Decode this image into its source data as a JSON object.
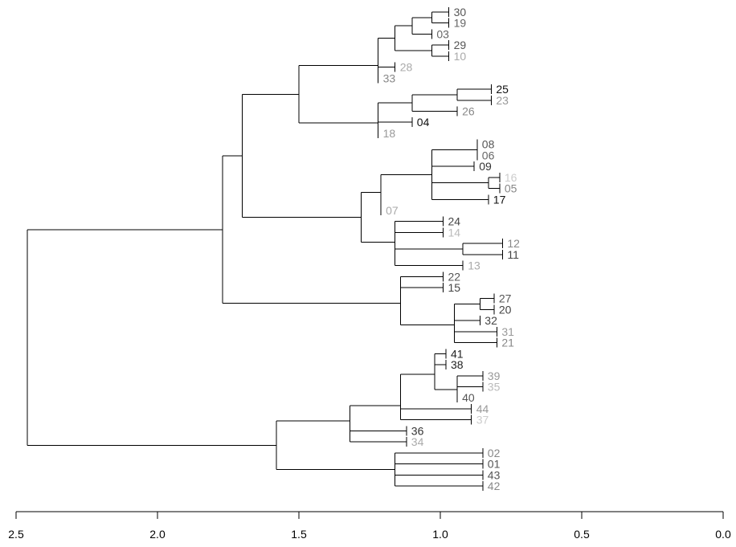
{
  "chart_data": {
    "type": "dendrogram",
    "orientation": "leaves-right",
    "xlim": [
      2.5,
      0.0
    ],
    "ticks": [
      {
        "value": 2.5,
        "label": "2.5"
      },
      {
        "value": 2.0,
        "label": "2.0"
      },
      {
        "value": 1.5,
        "label": "1.5"
      },
      {
        "value": 1.0,
        "label": "1.0"
      },
      {
        "value": 0.5,
        "label": "0.5"
      },
      {
        "value": 0.0,
        "label": "0.0"
      }
    ],
    "leaves": [
      {
        "label": "30",
        "height": 0.97,
        "color": "#555555"
      },
      {
        "label": "19",
        "height": 0.97,
        "color": "#666666"
      },
      {
        "label": "03",
        "height": 1.03,
        "color": "#666666"
      },
      {
        "label": "29",
        "height": 0.97,
        "color": "#555555"
      },
      {
        "label": "10",
        "height": 0.97,
        "color": "#aaaaaa"
      },
      {
        "label": "28",
        "height": 1.16,
        "color": "#aaaaaa"
      },
      {
        "label": "33",
        "height": 1.22,
        "color": "#888888"
      },
      {
        "label": "25",
        "height": 0.82,
        "color": "#111111"
      },
      {
        "label": "23",
        "height": 0.82,
        "color": "#999999"
      },
      {
        "label": "26",
        "height": 0.94,
        "color": "#888888"
      },
      {
        "label": "04",
        "height": 1.1,
        "color": "#111111"
      },
      {
        "label": "18",
        "height": 1.22,
        "color": "#999999"
      },
      {
        "label": "08",
        "height": 0.87,
        "color": "#555555"
      },
      {
        "label": "06",
        "height": 0.87,
        "color": "#666666"
      },
      {
        "label": "09",
        "height": 0.88,
        "color": "#333333"
      },
      {
        "label": "16",
        "height": 0.79,
        "color": "#cccccc"
      },
      {
        "label": "05",
        "height": 0.79,
        "color": "#888888"
      },
      {
        "label": "17",
        "height": 0.83,
        "color": "#111111"
      },
      {
        "label": "07",
        "height": 1.21,
        "color": "#aaaaaa"
      },
      {
        "label": "24",
        "height": 0.99,
        "color": "#444444"
      },
      {
        "label": "14",
        "height": 0.99,
        "color": "#bbbbbb"
      },
      {
        "label": "12",
        "height": 0.78,
        "color": "#888888"
      },
      {
        "label": "11",
        "height": 0.78,
        "color": "#444444"
      },
      {
        "label": "13",
        "height": 0.92,
        "color": "#aaaaaa"
      },
      {
        "label": "22",
        "height": 0.99,
        "color": "#555555"
      },
      {
        "label": "15",
        "height": 0.99,
        "color": "#444444"
      },
      {
        "label": "27",
        "height": 0.81,
        "color": "#555555"
      },
      {
        "label": "20",
        "height": 0.81,
        "color": "#444444"
      },
      {
        "label": "32",
        "height": 0.86,
        "color": "#444444"
      },
      {
        "label": "31",
        "height": 0.8,
        "color": "#999999"
      },
      {
        "label": "21",
        "height": 0.8,
        "color": "#888888"
      },
      {
        "label": "41",
        "height": 0.98,
        "color": "#222222"
      },
      {
        "label": "38",
        "height": 0.98,
        "color": "#222222"
      },
      {
        "label": "39",
        "height": 0.85,
        "color": "#999999"
      },
      {
        "label": "35",
        "height": 0.85,
        "color": "#bbbbbb"
      },
      {
        "label": "40",
        "height": 0.94,
        "color": "#555555"
      },
      {
        "label": "44",
        "height": 0.89,
        "color": "#999999"
      },
      {
        "label": "37",
        "height": 0.89,
        "color": "#cccccc"
      },
      {
        "label": "36",
        "height": 1.12,
        "color": "#333333"
      },
      {
        "label": "34",
        "height": 1.12,
        "color": "#aaaaaa"
      },
      {
        "label": "02",
        "height": 0.85,
        "color": "#888888"
      },
      {
        "label": "01",
        "height": 0.85,
        "color": "#555555"
      },
      {
        "label": "43",
        "height": 0.85,
        "color": "#555555"
      },
      {
        "label": "42",
        "height": 0.85,
        "color": "#888888"
      }
    ],
    "merges": [
      {
        "height": 1.03,
        "children": [
          [
            "leaf",
            0
          ],
          [
            "leaf",
            1
          ]
        ]
      },
      {
        "height": 1.1,
        "children": [
          [
            "node",
            0
          ],
          [
            "leaf",
            2
          ]
        ]
      },
      {
        "height": 1.03,
        "children": [
          [
            "leaf",
            3
          ],
          [
            "leaf",
            4
          ]
        ]
      },
      {
        "height": 1.16,
        "children": [
          [
            "node",
            1
          ],
          [
            "node",
            2
          ]
        ]
      },
      {
        "height": 1.22,
        "children": [
          [
            "node",
            3
          ],
          [
            "leaf",
            5
          ]
        ]
      },
      {
        "height": 1.22,
        "children": [
          [
            "node",
            4
          ],
          [
            "leaf",
            6
          ]
        ]
      },
      {
        "height": 0.94,
        "children": [
          [
            "leaf",
            7
          ],
          [
            "leaf",
            8
          ]
        ]
      },
      {
        "height": 1.1,
        "children": [
          [
            "node",
            6
          ],
          [
            "leaf",
            9
          ]
        ]
      },
      {
        "height": 1.22,
        "children": [
          [
            "node",
            7
          ],
          [
            "leaf",
            10
          ]
        ]
      },
      {
        "height": 1.22,
        "children": [
          [
            "node",
            8
          ],
          [
            "leaf",
            11
          ]
        ]
      },
      {
        "height": 1.5,
        "children": [
          [
            "node",
            5
          ],
          [
            "node",
            9
          ]
        ]
      },
      {
        "height": 0.87,
        "children": [
          [
            "leaf",
            12
          ],
          [
            "leaf",
            13
          ]
        ]
      },
      {
        "height": 1.03,
        "children": [
          [
            "node",
            11
          ],
          [
            "leaf",
            14
          ]
        ]
      },
      {
        "height": 0.83,
        "children": [
          [
            "leaf",
            15
          ],
          [
            "leaf",
            16
          ]
        ]
      },
      {
        "height": 1.03,
        "children": [
          [
            "node",
            13
          ],
          [
            "leaf",
            17
          ]
        ]
      },
      {
        "height": 1.03,
        "children": [
          [
            "node",
            12
          ],
          [
            "node",
            14
          ]
        ]
      },
      {
        "height": 1.21,
        "children": [
          [
            "node",
            15
          ],
          [
            "leaf",
            18
          ]
        ]
      },
      {
        "height": 1.16,
        "children": [
          [
            "leaf",
            19
          ],
          [
            "leaf",
            20
          ]
        ]
      },
      {
        "height": 0.92,
        "children": [
          [
            "leaf",
            21
          ],
          [
            "leaf",
            22
          ]
        ]
      },
      {
        "height": 1.16,
        "children": [
          [
            "node",
            18
          ],
          [
            "leaf",
            23
          ]
        ]
      },
      {
        "height": 1.16,
        "children": [
          [
            "node",
            17
          ],
          [
            "node",
            19
          ]
        ]
      },
      {
        "height": 1.28,
        "children": [
          [
            "node",
            16
          ],
          [
            "node",
            20
          ]
        ]
      },
      {
        "height": 1.7,
        "children": [
          [
            "node",
            10
          ],
          [
            "node",
            21
          ]
        ]
      },
      {
        "height": 1.14,
        "children": [
          [
            "leaf",
            24
          ],
          [
            "leaf",
            25
          ]
        ]
      },
      {
        "height": 0.86,
        "children": [
          [
            "leaf",
            26
          ],
          [
            "leaf",
            27
          ]
        ]
      },
      {
        "height": 0.95,
        "children": [
          [
            "node",
            24
          ],
          [
            "leaf",
            28
          ]
        ]
      },
      {
        "height": 0.95,
        "children": [
          [
            "leaf",
            29
          ],
          [
            "leaf",
            30
          ]
        ]
      },
      {
        "height": 0.95,
        "children": [
          [
            "node",
            25
          ],
          [
            "node",
            26
          ]
        ]
      },
      {
        "height": 1.14,
        "children": [
          [
            "node",
            23
          ],
          [
            "node",
            27
          ]
        ]
      },
      {
        "height": 1.77,
        "children": [
          [
            "node",
            22
          ],
          [
            "node",
            28
          ]
        ]
      },
      {
        "height": 1.02,
        "children": [
          [
            "leaf",
            31
          ],
          [
            "leaf",
            32
          ]
        ]
      },
      {
        "height": 0.94,
        "children": [
          [
            "leaf",
            33
          ],
          [
            "leaf",
            34
          ]
        ]
      },
      {
        "height": 0.94,
        "children": [
          [
            "node",
            31
          ],
          [
            "leaf",
            35
          ]
        ]
      },
      {
        "height": 1.02,
        "children": [
          [
            "node",
            30
          ],
          [
            "node",
            32
          ]
        ]
      },
      {
        "height": 1.14,
        "children": [
          [
            "node",
            33
          ],
          [
            "leaf",
            36
          ]
        ]
      },
      {
        "height": 1.14,
        "children": [
          [
            "node",
            34
          ],
          [
            "leaf",
            37
          ]
        ]
      },
      {
        "height": 1.32,
        "children": [
          [
            "leaf",
            38
          ],
          [
            "leaf",
            39
          ]
        ]
      },
      {
        "height": 1.32,
        "children": [
          [
            "node",
            35
          ],
          [
            "node",
            36
          ]
        ]
      },
      {
        "height": 1.16,
        "children": [
          [
            "leaf",
            40
          ],
          [
            "leaf",
            41
          ]
        ]
      },
      {
        "height": 1.16,
        "children": [
          [
            "leaf",
            42
          ],
          [
            "leaf",
            43
          ]
        ]
      },
      {
        "height": 1.16,
        "children": [
          [
            "node",
            38
          ],
          [
            "node",
            39
          ]
        ]
      },
      {
        "height": 1.58,
        "children": [
          [
            "node",
            37
          ],
          [
            "node",
            40
          ]
        ]
      },
      {
        "height": 2.46,
        "children": [
          [
            "node",
            29
          ],
          [
            "node",
            41
          ]
        ]
      }
    ]
  }
}
